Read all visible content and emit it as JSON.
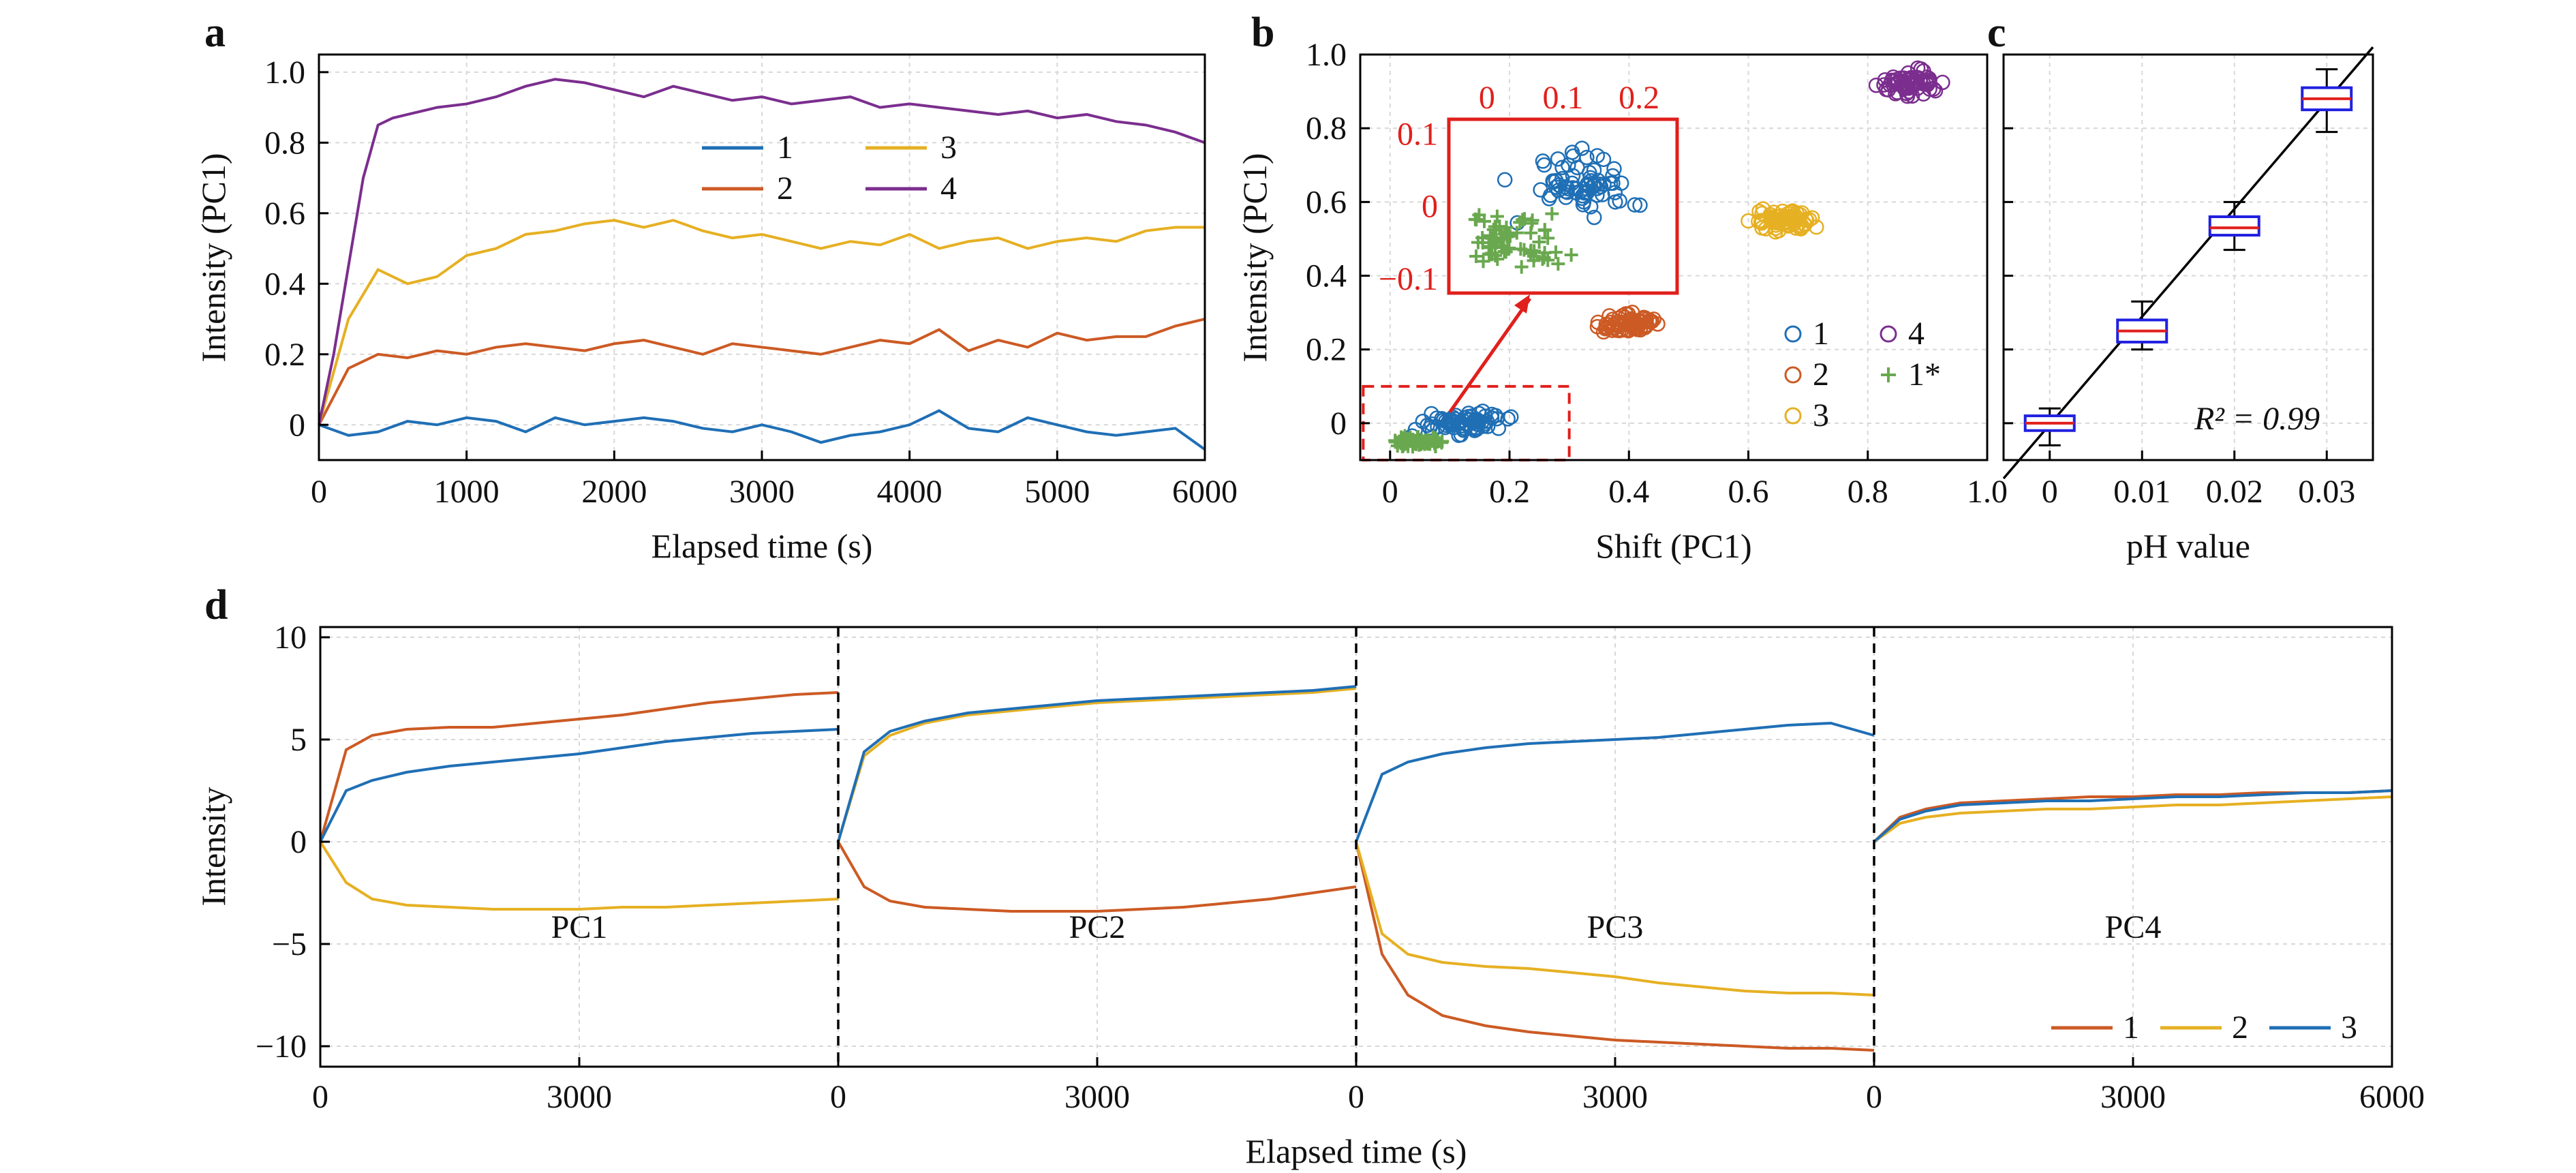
{
  "chart_data": [
    {
      "panel": "a",
      "type": "line",
      "xlabel": "Elapsed time (s)",
      "ylabel": "Intensity (PC1)",
      "xlim": [
        0,
        6000
      ],
      "ylim": [
        -0.1,
        1.05
      ],
      "xticks": [
        "0",
        "1000",
        "2000",
        "3000",
        "4000",
        "5000",
        "6000"
      ],
      "yticks": [
        "0",
        "0.2",
        "0.4",
        "0.6",
        "0.8",
        "1.0"
      ],
      "grid": true,
      "legend_position": "top-center",
      "series": [
        {
          "name": "1",
          "color": "#1f6fb5",
          "x": [
            0,
            200,
            400,
            600,
            800,
            1000,
            1200,
            1400,
            1600,
            1800,
            2000,
            2200,
            2400,
            2600,
            2800,
            3000,
            3200,
            3400,
            3600,
            3800,
            4000,
            4200,
            4400,
            4600,
            4800,
            5000,
            5200,
            5400,
            5600,
            5800,
            6000
          ],
          "y": [
            0,
            -0.03,
            -0.02,
            0.01,
            0.0,
            0.02,
            0.01,
            -0.02,
            0.02,
            0.0,
            0.01,
            0.02,
            0.01,
            -0.01,
            -0.02,
            0.0,
            -0.02,
            -0.05,
            -0.03,
            -0.02,
            0.0,
            0.04,
            -0.01,
            -0.02,
            0.02,
            0.0,
            -0.02,
            -0.03,
            -0.02,
            -0.01,
            -0.07
          ]
        },
        {
          "name": "2",
          "color": "#cc5a24",
          "x": [
            0,
            200,
            400,
            600,
            800,
            1000,
            1200,
            1400,
            1600,
            1800,
            2000,
            2200,
            2400,
            2600,
            2800,
            3000,
            3200,
            3400,
            3600,
            3800,
            4000,
            4200,
            4400,
            4600,
            4800,
            5000,
            5200,
            5400,
            5600,
            5800,
            6000
          ],
          "y": [
            0,
            0.16,
            0.2,
            0.19,
            0.21,
            0.2,
            0.22,
            0.23,
            0.22,
            0.21,
            0.23,
            0.24,
            0.22,
            0.2,
            0.23,
            0.22,
            0.21,
            0.2,
            0.22,
            0.24,
            0.23,
            0.27,
            0.21,
            0.24,
            0.22,
            0.26,
            0.24,
            0.25,
            0.25,
            0.28,
            0.3
          ]
        },
        {
          "name": "3",
          "color": "#e6b023",
          "x": [
            0,
            200,
            400,
            600,
            800,
            1000,
            1200,
            1400,
            1600,
            1800,
            2000,
            2200,
            2400,
            2600,
            2800,
            3000,
            3200,
            3400,
            3600,
            3800,
            4000,
            4200,
            4400,
            4600,
            4800,
            5000,
            5200,
            5400,
            5600,
            5800,
            6000
          ],
          "y": [
            0,
            0.3,
            0.44,
            0.4,
            0.42,
            0.48,
            0.5,
            0.54,
            0.55,
            0.57,
            0.58,
            0.56,
            0.58,
            0.55,
            0.53,
            0.54,
            0.52,
            0.5,
            0.52,
            0.51,
            0.54,
            0.5,
            0.52,
            0.53,
            0.5,
            0.52,
            0.53,
            0.52,
            0.55,
            0.56,
            0.56
          ]
        },
        {
          "name": "4",
          "color": "#7b2e8e",
          "x": [
            0,
            100,
            200,
            300,
            400,
            500,
            600,
            800,
            1000,
            1200,
            1400,
            1600,
            1800,
            2000,
            2200,
            2400,
            2600,
            2800,
            3000,
            3200,
            3400,
            3600,
            3800,
            4000,
            4200,
            4400,
            4600,
            4800,
            5000,
            5200,
            5400,
            5600,
            5800,
            6000
          ],
          "y": [
            0,
            0.2,
            0.45,
            0.7,
            0.85,
            0.87,
            0.88,
            0.9,
            0.91,
            0.93,
            0.96,
            0.98,
            0.97,
            0.95,
            0.93,
            0.96,
            0.94,
            0.92,
            0.93,
            0.91,
            0.92,
            0.93,
            0.9,
            0.91,
            0.9,
            0.89,
            0.88,
            0.89,
            0.87,
            0.88,
            0.86,
            0.85,
            0.83,
            0.8
          ]
        }
      ]
    },
    {
      "panel": "b",
      "type": "scatter",
      "xlabel": "Shift (PC1)",
      "ylabel": "Intensity (PC1)",
      "xlim": [
        -0.05,
        1.0
      ],
      "ylim": [
        -0.1,
        1.0
      ],
      "xticks": [
        "0",
        "0.2",
        "0.4",
        "0.6",
        "0.8",
        "1.0"
      ],
      "yticks": [
        "0",
        "0.2",
        "0.4",
        "0.6",
        "0.8",
        "1.0"
      ],
      "grid": true,
      "legend_position": "bottom-right",
      "series": [
        {
          "name": "1",
          "color": "#1f6fb5",
          "marker": "circle",
          "center": [
            0.12,
            0.0
          ],
          "spread": [
            0.1,
            0.04
          ]
        },
        {
          "name": "2",
          "color": "#cc5a24",
          "marker": "circle",
          "center": [
            0.4,
            0.27
          ],
          "spread": [
            0.07,
            0.04
          ]
        },
        {
          "name": "3",
          "color": "#e6b023",
          "marker": "circle",
          "center": [
            0.66,
            0.55
          ],
          "spread": [
            0.07,
            0.04
          ]
        },
        {
          "name": "4",
          "color": "#7b2e8e",
          "marker": "circle",
          "center": [
            0.87,
            0.92
          ],
          "spread": [
            0.07,
            0.05
          ]
        },
        {
          "name": "1*",
          "color": "#6aa84f",
          "marker": "plus",
          "center": [
            0.04,
            -0.05
          ],
          "spread": [
            0.06,
            0.02
          ]
        }
      ],
      "inset": {
        "xticks": [
          "0",
          "0.1",
          "0.2"
        ],
        "yticks": [
          "0.1",
          "0",
          "−0.1"
        ],
        "xlim": [
          -0.05,
          0.25
        ],
        "ylim": [
          -0.12,
          0.12
        ],
        "color": "#e0201c"
      }
    },
    {
      "panel": "c",
      "type": "box",
      "xlabel": "pH value",
      "ylabel": "",
      "xticks": [
        "0",
        "0.01",
        "0.02",
        "0.03"
      ],
      "annotation": "R² = 0.99",
      "grid": true,
      "boxes": [
        {
          "x": 0,
          "median": 0.0,
          "q1": -0.02,
          "q3": 0.02,
          "min": -0.06,
          "max": 0.04
        },
        {
          "x": 0.01,
          "median": 0.25,
          "q1": 0.22,
          "q3": 0.28,
          "min": 0.2,
          "max": 0.33
        },
        {
          "x": 0.02,
          "median": 0.53,
          "q1": 0.51,
          "q3": 0.56,
          "min": 0.47,
          "max": 0.6
        },
        {
          "x": 0.03,
          "median": 0.88,
          "q1": 0.85,
          "q3": 0.91,
          "min": 0.79,
          "max": 0.96
        }
      ],
      "fit_line": {
        "x": [
          -0.005,
          0.035
        ],
        "y": [
          -0.15,
          1.02
        ]
      },
      "box_color": "#2020e0",
      "median_color": "#e0201c"
    },
    {
      "panel": "d",
      "type": "line",
      "xlabel": "Elapsed time (s)",
      "ylabel": "Intensity",
      "ylim": [
        -11,
        10.5
      ],
      "yticks": [
        "10",
        "5",
        "0",
        "−5",
        "−10"
      ],
      "xticks": [
        "0",
        "3000",
        "0",
        "3000",
        "0",
        "3000",
        "0",
        "3000",
        "6000"
      ],
      "grid": true,
      "legend_position": "bottom-right",
      "segment_labels": [
        "PC1",
        "PC2",
        "PC3",
        "PC4"
      ],
      "legend": [
        {
          "name": "1",
          "color": "#cc5a24"
        },
        {
          "name": "2",
          "color": "#e6b023"
        },
        {
          "name": "3",
          "color": "#1f6fb5"
        }
      ],
      "segments": [
        {
          "label": "PC1",
          "x": [
            0,
            300,
            600,
            1000,
            1500,
            2000,
            2500,
            3000,
            3500,
            4000,
            4500,
            5000,
            5500,
            6000
          ],
          "series": [
            {
              "name": "1",
              "y": [
                0,
                4.5,
                5.2,
                5.5,
                5.6,
                5.6,
                5.8,
                6.0,
                6.2,
                6.5,
                6.8,
                7.0,
                7.2,
                7.3
              ]
            },
            {
              "name": "2",
              "y": [
                0,
                -2,
                -2.8,
                -3.1,
                -3.2,
                -3.3,
                -3.3,
                -3.3,
                -3.2,
                -3.2,
                -3.1,
                -3.0,
                -2.9,
                -2.8
              ]
            },
            {
              "name": "3",
              "y": [
                0,
                2.5,
                3.0,
                3.4,
                3.7,
                3.9,
                4.1,
                4.3,
                4.6,
                4.9,
                5.1,
                5.3,
                5.4,
                5.5
              ]
            }
          ]
        },
        {
          "label": "PC2",
          "x": [
            0,
            300,
            600,
            1000,
            1500,
            2000,
            2500,
            3000,
            3500,
            4000,
            4500,
            5000,
            5500,
            6000
          ],
          "series": [
            {
              "name": "1",
              "y": [
                0,
                -2.2,
                -2.9,
                -3.2,
                -3.3,
                -3.4,
                -3.4,
                -3.4,
                -3.3,
                -3.2,
                -3.0,
                -2.8,
                -2.5,
                -2.2
              ]
            },
            {
              "name": "2",
              "y": [
                0,
                4.2,
                5.2,
                5.8,
                6.2,
                6.4,
                6.6,
                6.8,
                6.9,
                7.0,
                7.1,
                7.2,
                7.3,
                7.5
              ]
            },
            {
              "name": "3",
              "y": [
                0,
                4.4,
                5.4,
                5.9,
                6.3,
                6.5,
                6.7,
                6.9,
                7.0,
                7.1,
                7.2,
                7.3,
                7.4,
                7.6
              ]
            }
          ]
        },
        {
          "label": "PC3",
          "x": [
            0,
            300,
            600,
            1000,
            1500,
            2000,
            2500,
            3000,
            3500,
            4000,
            4500,
            5000,
            5500,
            6000
          ],
          "series": [
            {
              "name": "1",
              "y": [
                0,
                -5.5,
                -7.5,
                -8.5,
                -9.0,
                -9.3,
                -9.5,
                -9.7,
                -9.8,
                -9.9,
                -10.0,
                -10.1,
                -10.1,
                -10.2
              ]
            },
            {
              "name": "2",
              "y": [
                0,
                -4.5,
                -5.5,
                -5.9,
                -6.1,
                -6.2,
                -6.4,
                -6.6,
                -6.9,
                -7.1,
                -7.3,
                -7.4,
                -7.4,
                -7.5
              ]
            },
            {
              "name": "3",
              "y": [
                0,
                3.3,
                3.9,
                4.3,
                4.6,
                4.8,
                4.9,
                5.0,
                5.1,
                5.3,
                5.5,
                5.7,
                5.8,
                5.2
              ]
            }
          ]
        },
        {
          "label": "PC4",
          "x": [
            0,
            300,
            600,
            1000,
            1500,
            2000,
            2500,
            3000,
            3500,
            4000,
            4500,
            5000,
            5500,
            6000
          ],
          "series": [
            {
              "name": "1",
              "y": [
                0,
                1.2,
                1.6,
                1.9,
                2.0,
                2.1,
                2.2,
                2.2,
                2.3,
                2.3,
                2.4,
                2.4,
                2.4,
                2.5
              ]
            },
            {
              "name": "2",
              "y": [
                0,
                0.9,
                1.2,
                1.4,
                1.5,
                1.6,
                1.6,
                1.7,
                1.8,
                1.8,
                1.9,
                2.0,
                2.1,
                2.2
              ]
            },
            {
              "name": "3",
              "y": [
                0,
                1.1,
                1.5,
                1.8,
                1.9,
                2.0,
                2.0,
                2.1,
                2.2,
                2.2,
                2.3,
                2.4,
                2.4,
                2.5
              ]
            }
          ]
        }
      ]
    }
  ],
  "panel_letters": [
    "a",
    "b",
    "c",
    "d"
  ]
}
